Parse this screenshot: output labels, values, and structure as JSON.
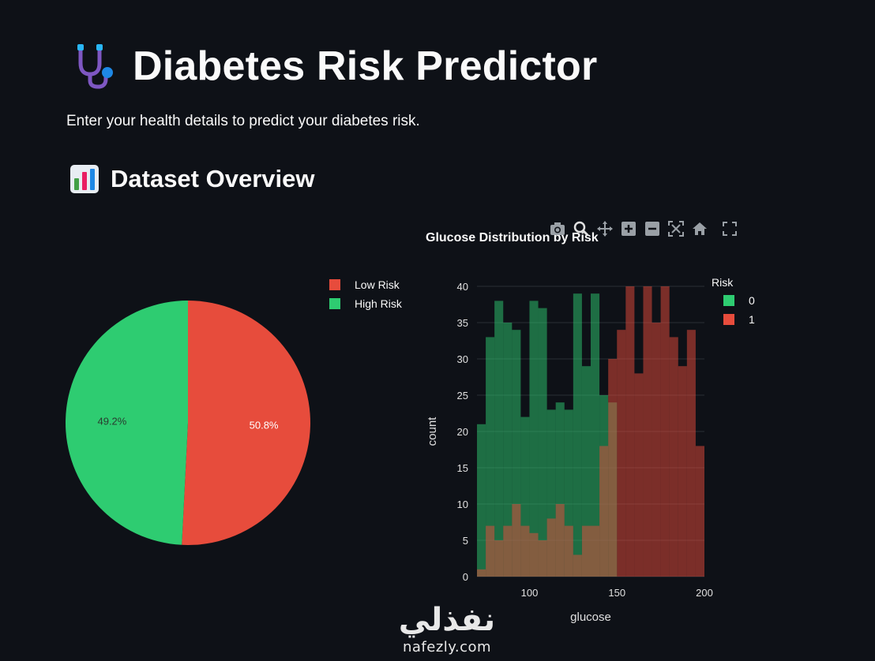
{
  "header": {
    "title": "Diabetes Risk Predictor",
    "icon": "stethoscope-icon",
    "subtitle": "Enter your health details to predict your diabetes risk."
  },
  "section": {
    "title": "Dataset Overview",
    "icon": "bar-chart-icon"
  },
  "toolbar": {
    "icons": [
      "camera-icon",
      "zoom-icon",
      "pan-icon",
      "zoom-in-icon",
      "zoom-out-icon",
      "autoscale-icon",
      "reset-axes-icon",
      "fullscreen-icon"
    ]
  },
  "watermark": {
    "arabic": "نفذلي",
    "latin": "nafezly.com"
  },
  "colors": {
    "background": "#0e1117",
    "low_risk": "#e74c3c",
    "high_risk": "#2ecc71"
  },
  "chart_data": [
    {
      "type": "pie",
      "labels": [
        "Low Risk",
        "High Risk"
      ],
      "values": [
        50.8,
        49.2
      ],
      "percent_labels": [
        "50.8%",
        "49.2%"
      ],
      "colors": [
        "#e74c3c",
        "#2ecc71"
      ],
      "legend": "top-right"
    },
    {
      "type": "bar",
      "title": "Glucose Distribution by Risk",
      "xlabel": "glucose",
      "ylabel": "count",
      "legend_title": "Risk",
      "xlim": [
        70,
        200
      ],
      "ylim": [
        0,
        40
      ],
      "xticks": [
        100,
        150,
        200
      ],
      "yticks": [
        0,
        5,
        10,
        15,
        20,
        25,
        30,
        35,
        40
      ],
      "bin_width": 5,
      "bin_starts": [
        70,
        75,
        80,
        85,
        90,
        95,
        100,
        105,
        110,
        115,
        120,
        125,
        130,
        135,
        140,
        145,
        150,
        155,
        160,
        165,
        170,
        175,
        180,
        185,
        190,
        195
      ],
      "series": [
        {
          "name": "0",
          "color": "#2ecc71",
          "values": [
            21,
            33,
            38,
            35,
            34,
            22,
            38,
            37,
            23,
            24,
            23,
            39,
            29,
            39,
            25,
            24,
            0,
            0,
            0,
            0,
            0,
            0,
            0,
            0,
            0,
            0
          ]
        },
        {
          "name": "1",
          "color": "#e74c3c",
          "values": [
            1,
            7,
            5,
            7,
            10,
            7,
            6,
            5,
            8,
            10,
            7,
            3,
            7,
            7,
            18,
            30,
            34,
            40,
            28,
            40,
            35,
            40,
            33,
            29,
            34,
            18
          ]
        }
      ]
    }
  ]
}
